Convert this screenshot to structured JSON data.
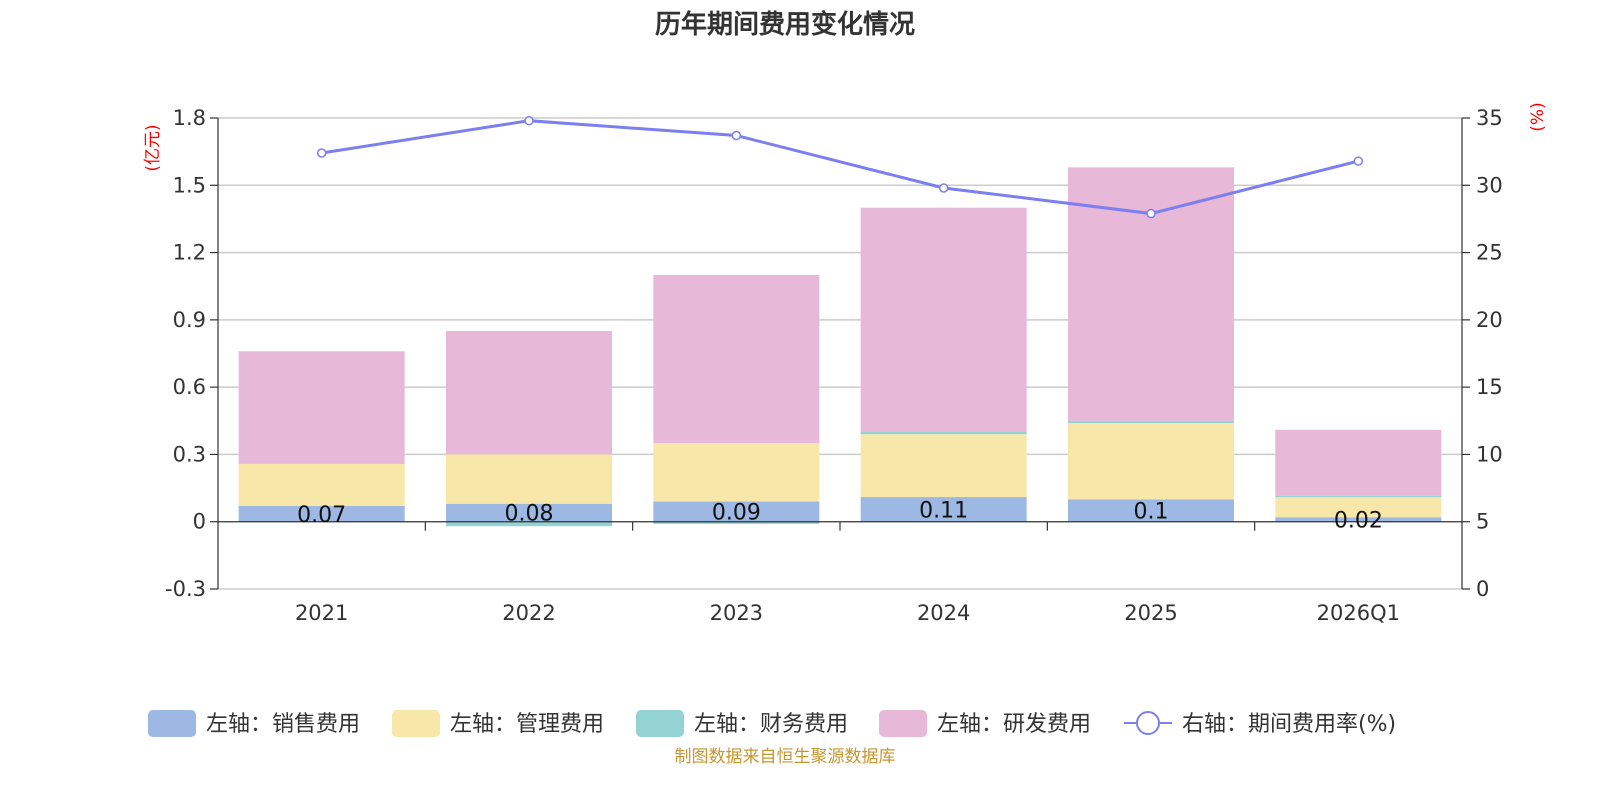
{
  "chart_data": {
    "type": "bar",
    "title": "历年期间费用变化情况",
    "categories": [
      "2021",
      "2022",
      "2023",
      "2024",
      "2025",
      "2026Q1"
    ],
    "y_left": {
      "unit": "(亿元)",
      "ylim": [
        -0.3,
        1.8
      ],
      "ticks": [
        "1.8",
        "1.5",
        "1.2",
        "0.9",
        "0.6",
        "0.3",
        "0",
        "-0.3"
      ]
    },
    "y_right": {
      "unit": "(%)",
      "ylim": [
        0,
        35
      ],
      "ticks": [
        "35",
        "30",
        "25",
        "20",
        "15",
        "10",
        "5",
        "0"
      ]
    },
    "series": [
      {
        "name": "左轴：销售费用",
        "axis": "left",
        "type": "bar",
        "color": "#9db8e3",
        "values": [
          0.07,
          0.08,
          0.09,
          0.11,
          0.1,
          0.02
        ],
        "labels": [
          "0.07",
          "0.08",
          "0.09",
          "0.11",
          "0.1",
          "0.02"
        ]
      },
      {
        "name": "左轴：管理费用",
        "axis": "left",
        "type": "bar",
        "color": "#f7e7a8",
        "values": [
          0.19,
          0.22,
          0.26,
          0.28,
          0.34,
          0.09
        ]
      },
      {
        "name": "左轴：财务费用",
        "axis": "left",
        "type": "bar",
        "color": "#93d3d3",
        "values": [
          0.0,
          -0.02,
          -0.01,
          0.01,
          0.01,
          0.005
        ]
      },
      {
        "name": "左轴：研发费用",
        "axis": "left",
        "type": "bar",
        "color": "#e8b8d9",
        "values": [
          0.5,
          0.55,
          0.75,
          1.0,
          1.13,
          0.295
        ]
      },
      {
        "name": "右轴：期间费用率(%)",
        "axis": "right",
        "type": "line",
        "color": "#7b7ff0",
        "values": [
          32.4,
          34.8,
          33.7,
          29.8,
          27.9,
          31.8
        ]
      }
    ],
    "source": "制图数据来自恒生聚源数据库"
  }
}
